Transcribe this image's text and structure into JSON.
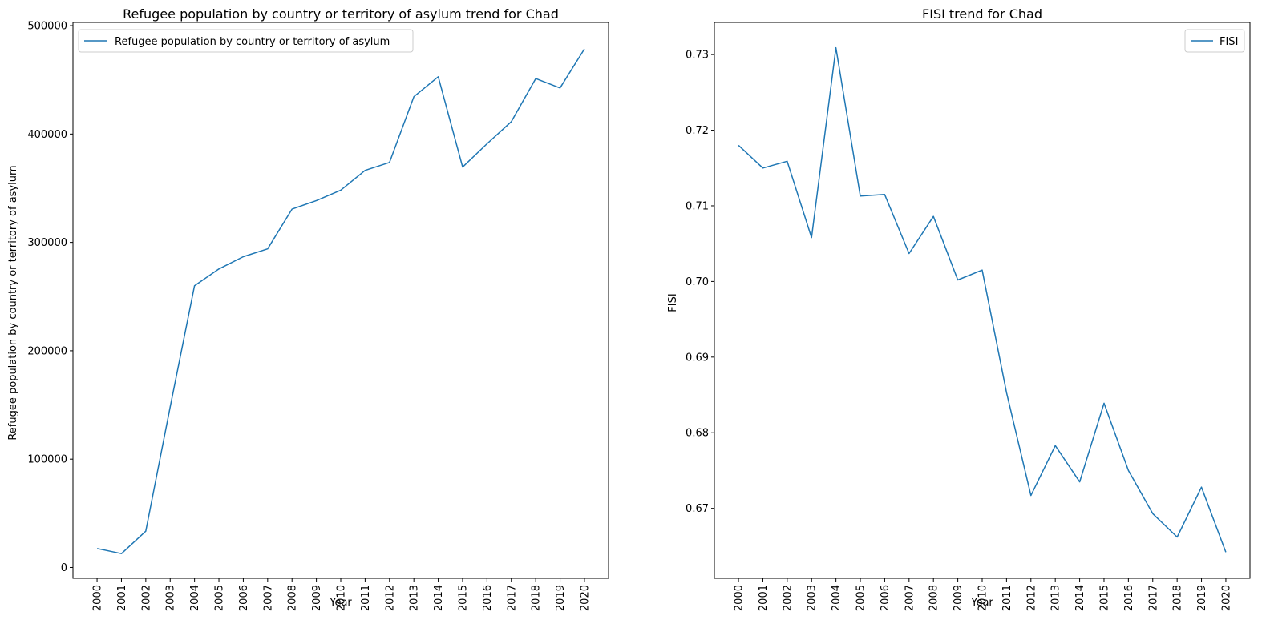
{
  "chart_data": [
    {
      "type": "line",
      "title": "Refugee population by country or territory of asylum trend for Chad",
      "xlabel": "Year",
      "ylabel": "Refugee population by country or territory of asylum",
      "x": [
        "2000",
        "2001",
        "2002",
        "2003",
        "2004",
        "2005",
        "2006",
        "2007",
        "2008",
        "2009",
        "2010",
        "2011",
        "2012",
        "2013",
        "2014",
        "2015",
        "2016",
        "2017",
        "2018",
        "2019",
        "2020"
      ],
      "series": [
        {
          "name": "Refugee population by country or territory of asylum",
          "color": "#1f77b4",
          "values": [
            17500,
            12800,
            33500,
            148000,
            260000,
            275500,
            286800,
            294000,
            330700,
            338600,
            348200,
            366500,
            373800,
            434500,
            452900,
            369500,
            391000,
            411500,
            451200,
            442500,
            478500
          ]
        }
      ],
      "ylim": [
        -10000,
        503000
      ],
      "yticks": [
        0,
        100000,
        200000,
        300000,
        400000,
        500000
      ],
      "ytick_labels": [
        "0",
        "100000",
        "200000",
        "300000",
        "400000",
        "500000"
      ],
      "legend_position": "upper-left",
      "grid": false
    },
    {
      "type": "line",
      "title": "FISI trend for Chad",
      "xlabel": "Year",
      "ylabel": "FISI",
      "x": [
        "2000",
        "2001",
        "2002",
        "2003",
        "2004",
        "2005",
        "2006",
        "2007",
        "2008",
        "2009",
        "2010",
        "2011",
        "2012",
        "2013",
        "2014",
        "2015",
        "2016",
        "2017",
        "2018",
        "2019",
        "2020"
      ],
      "series": [
        {
          "name": "FISI",
          "color": "#1f77b4",
          "values": [
            0.718,
            0.715,
            0.7159,
            0.7058,
            0.7309,
            0.7113,
            0.7115,
            0.7037,
            0.7086,
            0.7002,
            0.7015,
            0.6853,
            0.6717,
            0.6783,
            0.6735,
            0.6839,
            0.675,
            0.6693,
            0.6662,
            0.6728,
            0.6642
          ]
        }
      ],
      "ylim": [
        0.66075,
        0.73425
      ],
      "yticks": [
        0.67,
        0.68,
        0.69,
        0.7,
        0.71,
        0.72,
        0.73
      ],
      "ytick_labels": [
        "0.67",
        "0.68",
        "0.69",
        "0.70",
        "0.71",
        "0.72",
        "0.73"
      ],
      "legend_position": "upper-right",
      "grid": false
    }
  ]
}
